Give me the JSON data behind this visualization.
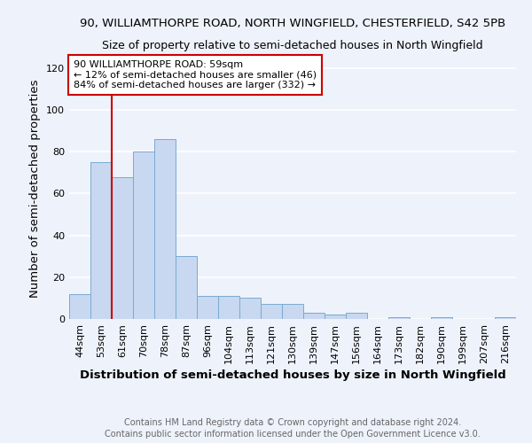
{
  "title_line1": "90, WILLIAMTHORPE ROAD, NORTH WINGFIELD, CHESTERFIELD, S42 5PB",
  "title_line2": "Size of property relative to semi-detached houses in North Wingfield",
  "categories": [
    "44sqm",
    "53sqm",
    "61sqm",
    "70sqm",
    "78sqm",
    "87sqm",
    "96sqm",
    "104sqm",
    "113sqm",
    "121sqm",
    "130sqm",
    "139sqm",
    "147sqm",
    "156sqm",
    "164sqm",
    "173sqm",
    "182sqm",
    "190sqm",
    "199sqm",
    "207sqm",
    "216sqm"
  ],
  "values": [
    12,
    75,
    68,
    80,
    86,
    30,
    11,
    11,
    10,
    7,
    7,
    3,
    2,
    3,
    0,
    1,
    0,
    1,
    0,
    0,
    1
  ],
  "bar_color": "#c8d8f0",
  "bar_edge_color": "#7aaad0",
  "annotation_line1": "90 WILLIAMTHORPE ROAD: 59sqm",
  "annotation_line2": "← 12% of semi-detached houses are smaller (46)",
  "annotation_line3": "84% of semi-detached houses are larger (332) →",
  "property_line_color": "#cc0000",
  "property_box_color": "#cc0000",
  "xlabel": "Distribution of semi-detached houses by size in North Wingfield",
  "ylabel": "Number of semi-detached properties",
  "ylim": [
    0,
    125
  ],
  "yticks": [
    0,
    20,
    40,
    60,
    80,
    100,
    120
  ],
  "footnote_line1": "Contains HM Land Registry data © Crown copyright and database right 2024.",
  "footnote_line2": "Contains public sector information licensed under the Open Government Licence v3.0.",
  "background_color": "#eef2fb",
  "grid_color": "#ffffff",
  "title_fontsize": 9.5,
  "subtitle_fontsize": 9,
  "axis_label_fontsize": 9.5,
  "tick_fontsize": 8,
  "footnote_fontsize": 7
}
